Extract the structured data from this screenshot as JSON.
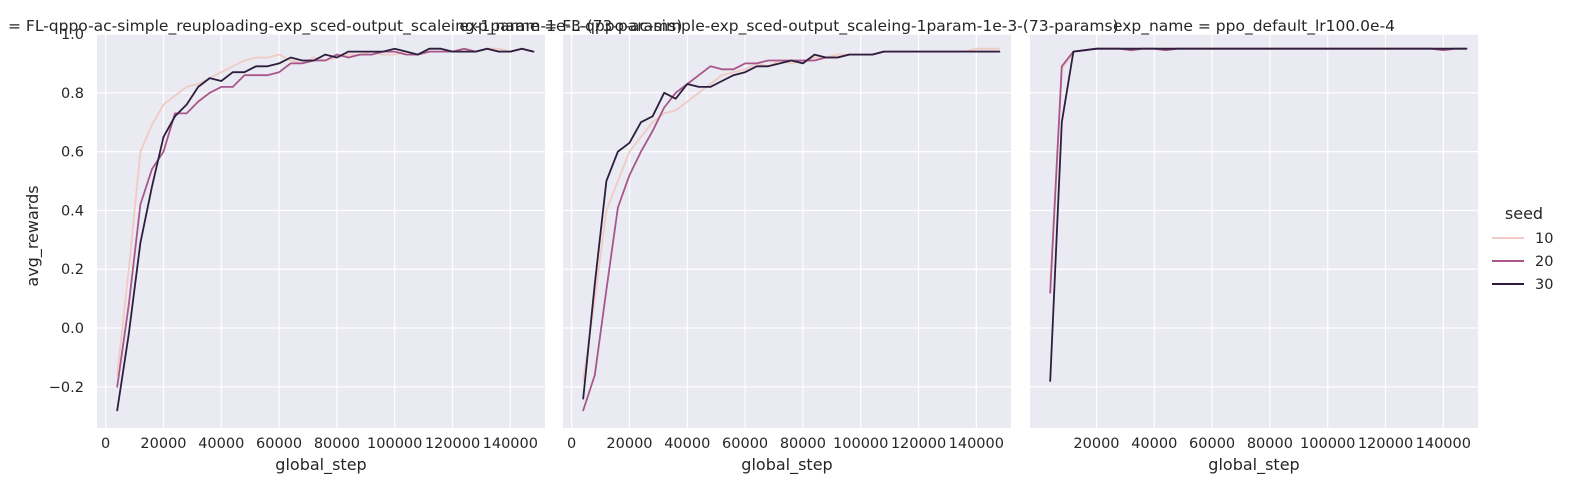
{
  "chart_data": [
    {
      "type": "line",
      "title": "= FL-qppo-ac-simple_reuploading-exp_sced-output_scaleing-1param-1e-3-(73-params)",
      "xlabel": "global_step",
      "ylabel": "avg_rewards",
      "xlim": [
        -3000,
        152000
      ],
      "ylim": [
        -0.34,
        1.0
      ],
      "xticks": [
        0,
        20000,
        40000,
        60000,
        80000,
        100000,
        120000,
        140000
      ],
      "xtick_labels": [
        "0",
        "20000",
        "40000",
        "60000",
        "80000",
        "100000",
        "120000",
        "140000"
      ],
      "yticks": [
        -0.2,
        0.0,
        0.2,
        0.4,
        0.6,
        0.8,
        1.0
      ],
      "ytick_labels": [
        "−0.2",
        "0.0",
        "0.2",
        "0.4",
        "0.6",
        "0.8",
        "1.0"
      ],
      "grid": true,
      "series": [
        {
          "name": "10",
          "color": "#f0cbc4",
          "x": [
            4000,
            8000,
            12000,
            16000,
            20000,
            24000,
            28000,
            32000,
            36000,
            40000,
            44000,
            48000,
            52000,
            56000,
            60000,
            64000,
            68000,
            72000,
            76000,
            80000,
            84000,
            88000,
            92000,
            96000,
            100000,
            104000,
            108000,
            112000,
            116000,
            120000,
            124000,
            128000,
            132000,
            136000,
            140000,
            144000,
            148000
          ],
          "y": [
            -0.16,
            0.2,
            0.6,
            0.69,
            0.76,
            0.79,
            0.82,
            0.83,
            0.85,
            0.87,
            0.89,
            0.91,
            0.92,
            0.92,
            0.93,
            0.91,
            0.9,
            0.92,
            0.91,
            0.92,
            0.93,
            0.93,
            0.94,
            0.93,
            0.93,
            0.94,
            0.93,
            0.94,
            0.94,
            0.94,
            0.95,
            0.94,
            0.95,
            0.95,
            0.94,
            0.95,
            0.94
          ]
        },
        {
          "name": "20",
          "color": "#a8578a",
          "x": [
            4000,
            8000,
            12000,
            16000,
            20000,
            24000,
            28000,
            32000,
            36000,
            40000,
            44000,
            48000,
            52000,
            56000,
            60000,
            64000,
            68000,
            72000,
            76000,
            80000,
            84000,
            88000,
            92000,
            96000,
            100000,
            104000,
            108000,
            112000,
            116000,
            120000,
            124000,
            128000,
            132000,
            136000,
            140000,
            144000,
            148000
          ],
          "y": [
            -0.2,
            0.08,
            0.42,
            0.54,
            0.6,
            0.73,
            0.73,
            0.77,
            0.8,
            0.82,
            0.82,
            0.86,
            0.86,
            0.86,
            0.87,
            0.9,
            0.9,
            0.91,
            0.91,
            0.93,
            0.92,
            0.93,
            0.93,
            0.94,
            0.94,
            0.93,
            0.93,
            0.94,
            0.94,
            0.94,
            0.95,
            0.94,
            0.95,
            0.94,
            0.94,
            0.95,
            0.94
          ]
        },
        {
          "name": "30",
          "color": "#2d1e3e",
          "x": [
            4000,
            8000,
            12000,
            16000,
            20000,
            24000,
            28000,
            32000,
            36000,
            40000,
            44000,
            48000,
            52000,
            56000,
            60000,
            64000,
            68000,
            72000,
            76000,
            80000,
            84000,
            88000,
            92000,
            96000,
            100000,
            104000,
            108000,
            112000,
            116000,
            120000,
            124000,
            128000,
            132000,
            136000,
            140000,
            144000,
            148000
          ],
          "y": [
            -0.28,
            -0.02,
            0.29,
            0.48,
            0.65,
            0.72,
            0.76,
            0.82,
            0.85,
            0.84,
            0.87,
            0.87,
            0.89,
            0.89,
            0.9,
            0.92,
            0.91,
            0.91,
            0.93,
            0.92,
            0.94,
            0.94,
            0.94,
            0.94,
            0.95,
            0.94,
            0.93,
            0.95,
            0.95,
            0.94,
            0.94,
            0.94,
            0.95,
            0.94,
            0.94,
            0.95,
            0.94
          ]
        }
      ]
    },
    {
      "type": "line",
      "title": "exp_name = FL-qppo-ac-simple-exp_sced-output_scaleing-1param-1e-3-(73-params)",
      "xlabel": "global_step",
      "ylabel": "",
      "xlim": [
        -3000,
        152000
      ],
      "ylim": [
        -0.34,
        1.0
      ],
      "xticks": [
        0,
        20000,
        40000,
        60000,
        80000,
        100000,
        120000,
        140000
      ],
      "xtick_labels": [
        "0",
        "20000",
        "40000",
        "60000",
        "80000",
        "100000",
        "120000",
        "140000"
      ],
      "grid": true,
      "series": [
        {
          "name": "10",
          "color": "#f0cbc4",
          "x": [
            4000,
            8000,
            12000,
            16000,
            20000,
            24000,
            28000,
            32000,
            36000,
            40000,
            44000,
            48000,
            52000,
            56000,
            60000,
            64000,
            68000,
            72000,
            76000,
            80000,
            84000,
            88000,
            92000,
            96000,
            100000,
            104000,
            108000,
            112000,
            116000,
            120000,
            124000,
            128000,
            132000,
            136000,
            140000,
            144000,
            148000
          ],
          "y": [
            -0.18,
            0.1,
            0.4,
            0.5,
            0.6,
            0.65,
            0.7,
            0.73,
            0.74,
            0.77,
            0.8,
            0.83,
            0.86,
            0.87,
            0.88,
            0.9,
            0.89,
            0.91,
            0.9,
            0.91,
            0.92,
            0.92,
            0.93,
            0.93,
            0.93,
            0.93,
            0.94,
            0.94,
            0.94,
            0.94,
            0.94,
            0.94,
            0.94,
            0.94,
            0.95,
            0.95,
            0.95
          ]
        },
        {
          "name": "20",
          "color": "#a8578a",
          "x": [
            4000,
            8000,
            12000,
            16000,
            20000,
            24000,
            28000,
            32000,
            36000,
            40000,
            44000,
            48000,
            52000,
            56000,
            60000,
            64000,
            68000,
            72000,
            76000,
            80000,
            84000,
            88000,
            92000,
            96000,
            100000,
            104000,
            108000,
            112000,
            116000,
            120000,
            124000,
            128000,
            132000,
            136000,
            140000,
            144000,
            148000
          ],
          "y": [
            -0.28,
            -0.16,
            0.13,
            0.41,
            0.52,
            0.6,
            0.67,
            0.75,
            0.8,
            0.83,
            0.86,
            0.89,
            0.88,
            0.88,
            0.9,
            0.9,
            0.91,
            0.91,
            0.91,
            0.91,
            0.91,
            0.92,
            0.92,
            0.93,
            0.93,
            0.93,
            0.94,
            0.94,
            0.94,
            0.94,
            0.94,
            0.94,
            0.94,
            0.94,
            0.94,
            0.94,
            0.94
          ]
        },
        {
          "name": "30",
          "color": "#2d1e3e",
          "x": [
            4000,
            8000,
            12000,
            16000,
            20000,
            24000,
            28000,
            32000,
            36000,
            40000,
            44000,
            48000,
            52000,
            56000,
            60000,
            64000,
            68000,
            72000,
            76000,
            80000,
            84000,
            88000,
            92000,
            96000,
            100000,
            104000,
            108000,
            112000,
            116000,
            120000,
            124000,
            128000,
            132000,
            136000,
            140000,
            144000,
            148000
          ],
          "y": [
            -0.24,
            0.15,
            0.5,
            0.6,
            0.63,
            0.7,
            0.72,
            0.8,
            0.78,
            0.83,
            0.82,
            0.82,
            0.84,
            0.86,
            0.87,
            0.89,
            0.89,
            0.9,
            0.91,
            0.9,
            0.93,
            0.92,
            0.92,
            0.93,
            0.93,
            0.93,
            0.94,
            0.94,
            0.94,
            0.94,
            0.94,
            0.94,
            0.94,
            0.94,
            0.94,
            0.94,
            0.94
          ]
        }
      ]
    },
    {
      "type": "line",
      "title": "exp_name = ppo_default_lr100.0e-4",
      "xlabel": "global_step",
      "ylabel": "",
      "xlim": [
        -3000,
        152000
      ],
      "ylim": [
        -0.34,
        1.0
      ],
      "xticks": [
        20000,
        40000,
        60000,
        80000,
        100000,
        120000,
        140000
      ],
      "xtick_labels": [
        "20000",
        "40000",
        "60000",
        "80000",
        "100000",
        "120000",
        "140000"
      ],
      "grid": true,
      "series": [
        {
          "name": "10",
          "color": "#f0cbc4",
          "x": [
            4000,
            8000,
            12000,
            16000,
            20000,
            24000,
            28000,
            32000,
            36000,
            40000,
            44000,
            48000,
            52000,
            56000,
            60000,
            64000,
            68000,
            72000,
            76000,
            80000,
            84000,
            88000,
            92000,
            96000,
            100000,
            104000,
            108000,
            112000,
            116000,
            120000,
            124000,
            128000,
            132000,
            136000,
            140000,
            144000,
            148000
          ],
          "y": [
            0.15,
            0.88,
            0.94,
            0.945,
            0.95,
            0.95,
            0.95,
            0.95,
            0.95,
            0.95,
            0.95,
            0.95,
            0.95,
            0.95,
            0.95,
            0.95,
            0.95,
            0.95,
            0.95,
            0.95,
            0.95,
            0.95,
            0.95,
            0.95,
            0.95,
            0.95,
            0.95,
            0.95,
            0.95,
            0.95,
            0.95,
            0.95,
            0.95,
            0.95,
            0.95,
            0.95,
            0.95
          ]
        },
        {
          "name": "20",
          "color": "#a8578a",
          "x": [
            4000,
            8000,
            12000,
            16000,
            20000,
            24000,
            28000,
            32000,
            36000,
            40000,
            44000,
            48000,
            52000,
            56000,
            60000,
            64000,
            68000,
            72000,
            76000,
            80000,
            84000,
            88000,
            92000,
            96000,
            100000,
            104000,
            108000,
            112000,
            116000,
            120000,
            124000,
            128000,
            132000,
            136000,
            140000,
            144000,
            148000
          ],
          "y": [
            0.12,
            0.89,
            0.94,
            0.945,
            0.95,
            0.95,
            0.95,
            0.945,
            0.95,
            0.95,
            0.945,
            0.95,
            0.95,
            0.95,
            0.95,
            0.95,
            0.95,
            0.95,
            0.95,
            0.95,
            0.95,
            0.95,
            0.95,
            0.95,
            0.95,
            0.95,
            0.95,
            0.95,
            0.95,
            0.95,
            0.95,
            0.95,
            0.95,
            0.95,
            0.945,
            0.95,
            0.95
          ]
        },
        {
          "name": "30",
          "color": "#2d1e3e",
          "x": [
            4000,
            8000,
            12000,
            16000,
            20000,
            24000,
            28000,
            32000,
            36000,
            40000,
            44000,
            48000,
            52000,
            56000,
            60000,
            64000,
            68000,
            72000,
            76000,
            80000,
            84000,
            88000,
            92000,
            96000,
            100000,
            104000,
            108000,
            112000,
            116000,
            120000,
            124000,
            128000,
            132000,
            136000,
            140000,
            144000,
            148000
          ],
          "y": [
            -0.18,
            0.7,
            0.94,
            0.945,
            0.95,
            0.95,
            0.95,
            0.95,
            0.95,
            0.95,
            0.95,
            0.95,
            0.95,
            0.95,
            0.95,
            0.95,
            0.95,
            0.95,
            0.95,
            0.95,
            0.95,
            0.95,
            0.95,
            0.95,
            0.95,
            0.95,
            0.95,
            0.95,
            0.95,
            0.95,
            0.95,
            0.95,
            0.95,
            0.95,
            0.95,
            0.95,
            0.95
          ]
        }
      ]
    }
  ],
  "legend": {
    "title": "seed",
    "placement": "right",
    "entries": [
      {
        "label": "10",
        "color": "#f0cbc4"
      },
      {
        "label": "20",
        "color": "#a8578a"
      },
      {
        "label": "30",
        "color": "#2d1e3e"
      }
    ]
  },
  "style": {
    "panel_background": "#eaeaf2",
    "grid_color": "#ffffff"
  }
}
